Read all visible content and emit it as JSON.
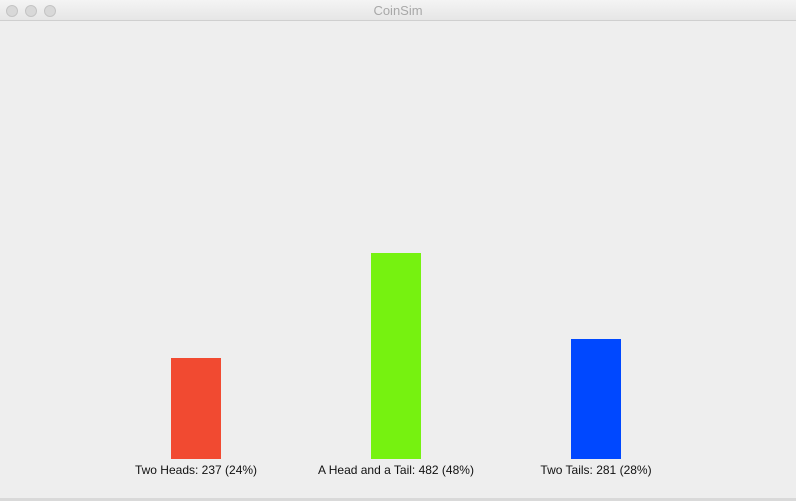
{
  "window": {
    "title": "CoinSim"
  },
  "chart_data": {
    "type": "bar",
    "categories": [
      "Two Heads",
      "A Head and a Tail",
      "Two Tails"
    ],
    "values": [
      237,
      482,
      281
    ],
    "percents": [
      24,
      48,
      28
    ],
    "labels": [
      "Two Heads: 237 (24%)",
      "A Head and a Tail: 482 (48%)",
      "Two Tails: 281 (28%)"
    ],
    "colors": [
      "#f14a31",
      "#76f210",
      "#0048ff"
    ],
    "grid": false
  }
}
